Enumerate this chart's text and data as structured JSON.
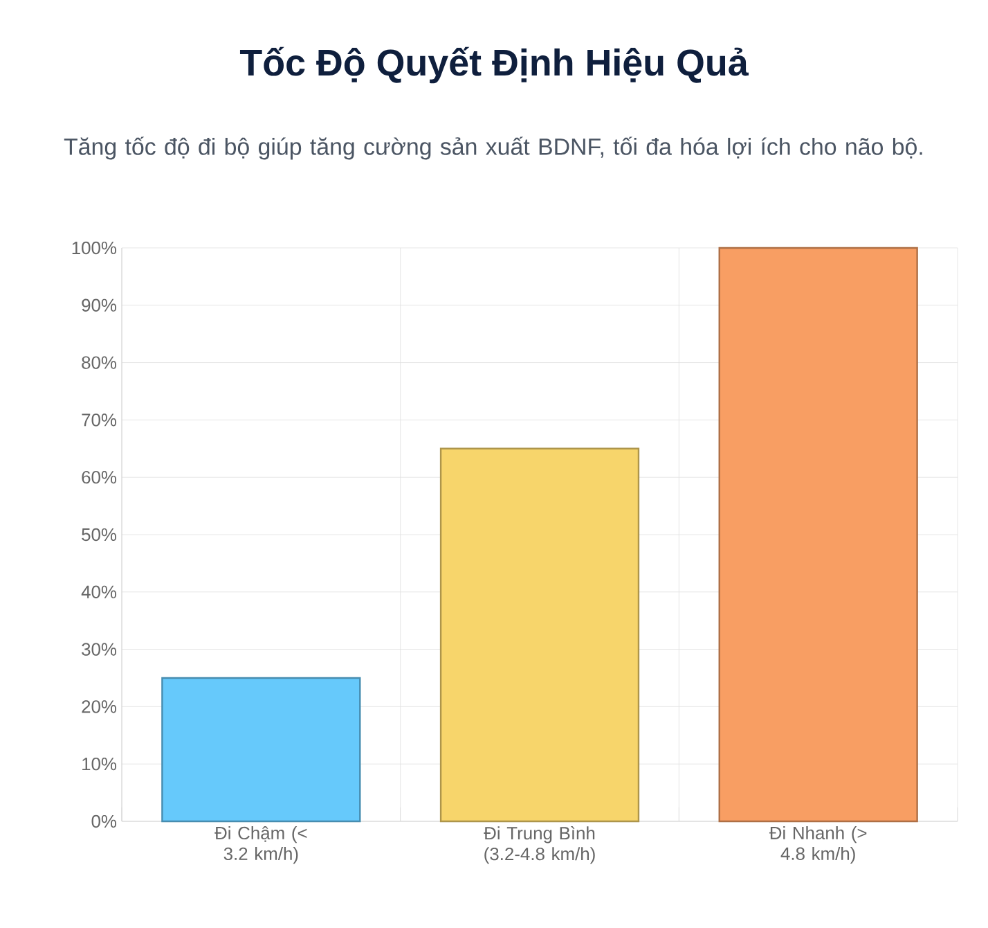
{
  "chart_data": {
    "type": "bar",
    "title": "Tốc Độ Quyết Định Hiệu Quả",
    "subtitle": "Tăng tốc độ đi bộ giúp tăng cường sản xuất BDNF, tối đa hóa lợi ích cho não bộ.",
    "categories": [
      "Đi Chậm (< 3.2 km/h)",
      "Đi Trung Bình (3.2-4.8 km/h)",
      "Đi Nhanh (> 4.8 km/h)"
    ],
    "values": [
      25,
      65,
      100
    ],
    "colors": [
      "#66c9fb",
      "#f7d56b",
      "#f89e63"
    ],
    "ylim": [
      0,
      100
    ],
    "yticks": [
      {
        "value": 0,
        "label": "0%"
      },
      {
        "value": 10,
        "label": "10%"
      },
      {
        "value": 20,
        "label": "20%"
      },
      {
        "value": 30,
        "label": "30%"
      },
      {
        "value": 40,
        "label": "40%"
      },
      {
        "value": 50,
        "label": "50%"
      },
      {
        "value": 60,
        "label": "60%"
      },
      {
        "value": 70,
        "label": "70%"
      },
      {
        "value": 80,
        "label": "80%"
      },
      {
        "value": 90,
        "label": "90%"
      },
      {
        "value": 100,
        "label": "100%"
      }
    ],
    "grid": true
  }
}
